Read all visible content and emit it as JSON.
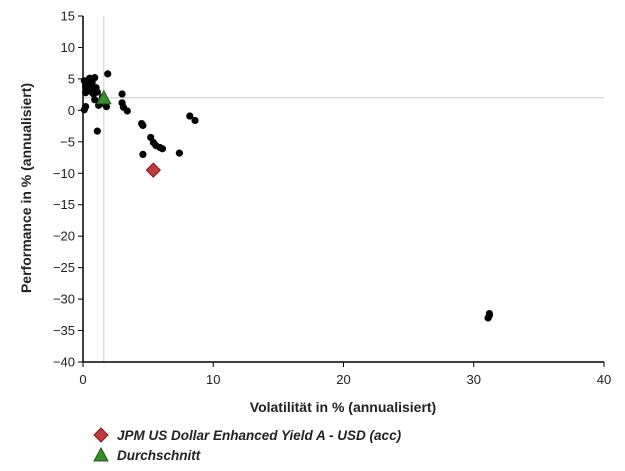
{
  "chart_data": {
    "type": "scatter",
    "title": "",
    "xlabel": "Volatilität in % (annualisiert)",
    "ylabel": "Performance in % (annualisiert)",
    "xlim": [
      0,
      40
    ],
    "ylim": [
      -40,
      15
    ],
    "xticks": [
      0,
      10,
      20,
      30,
      40
    ],
    "yticks": [
      15,
      10,
      5,
      0,
      -5,
      -10,
      -15,
      -20,
      -25,
      -30,
      -35,
      -40
    ],
    "grid": false,
    "legend_position": "bottom-left",
    "reference_lines": {
      "x": 1.6,
      "y": 2.0
    },
    "series": [
      {
        "role": "peers",
        "color": "#000000",
        "marker": "circle",
        "points": [
          [
            0.1,
            4.7
          ],
          [
            0.2,
            3.9
          ],
          [
            0.3,
            3.4
          ],
          [
            0.4,
            4.8
          ],
          [
            0.5,
            5.1
          ],
          [
            0.6,
            3.0
          ],
          [
            0.7,
            4.4
          ],
          [
            0.8,
            2.6
          ],
          [
            0.9,
            5.2
          ],
          [
            1.0,
            3.6
          ],
          [
            1.1,
            2.9
          ],
          [
            1.2,
            0.8
          ],
          [
            1.3,
            1.0
          ],
          [
            1.4,
            1.5
          ],
          [
            1.5,
            2.1
          ],
          [
            1.8,
            0.6
          ],
          [
            1.9,
            5.8
          ],
          [
            1.1,
            -3.3
          ],
          [
            0.2,
            2.8
          ],
          [
            0.3,
            3.6
          ],
          [
            0.5,
            4.0
          ],
          [
            0.7,
            3.3
          ],
          [
            0.9,
            1.7
          ],
          [
            0.1,
            0.1
          ],
          [
            0.2,
            0.6
          ],
          [
            3.0,
            2.6
          ],
          [
            3.0,
            1.2
          ],
          [
            3.1,
            0.5
          ],
          [
            3.4,
            -0.1
          ],
          [
            4.5,
            -2.1
          ],
          [
            4.6,
            -2.4
          ],
          [
            4.6,
            -7.0
          ],
          [
            5.2,
            -4.3
          ],
          [
            5.4,
            -5.1
          ],
          [
            5.6,
            -5.6
          ],
          [
            5.9,
            -5.9
          ],
          [
            6.1,
            -6.1
          ],
          [
            7.4,
            -6.8
          ],
          [
            8.2,
            -0.9
          ],
          [
            8.6,
            -1.6
          ],
          [
            31.1,
            -33.0
          ],
          [
            31.2,
            -32.6
          ],
          [
            31.2,
            -32.3
          ]
        ]
      },
      {
        "role": "fund",
        "name": "JPM US Dollar Enhanced Yield A - USD (acc)",
        "color": "#c03a3a",
        "marker": "diamond",
        "points": [
          [
            5.4,
            -9.5
          ]
        ]
      },
      {
        "role": "average",
        "name": "Durchschnitt",
        "color": "#3a8c2e",
        "marker": "triangle",
        "points": [
          [
            1.6,
            2.0
          ]
        ]
      }
    ]
  }
}
